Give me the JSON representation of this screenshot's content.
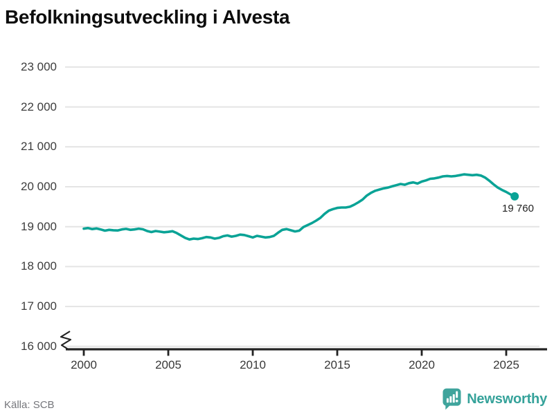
{
  "header": {
    "title": "Befolkningsutveckling i Alvesta"
  },
  "footer": {
    "source": "Källa: SCB",
    "brand": "Newsworthy"
  },
  "colors": {
    "line": "#0aa396",
    "grid": "#e4e4e4",
    "axis": "#222222",
    "title_text": "#0d0d0d",
    "tick_text": "#3d3d3d",
    "source_text": "#75767b",
    "brand_teal": "#3fa49c",
    "brand_text": "#35a29a",
    "end_label_text": "#1f1f1f"
  },
  "chart_data": {
    "type": "line",
    "title": "Befolkningsutveckling i Alvesta",
    "source": "Källa: SCB",
    "series_name": "Befolkning i Alvesta",
    "x_start": 2000.0,
    "x_step_years": 0.25,
    "values": [
      18950,
      18965,
      18940,
      18955,
      18930,
      18900,
      18920,
      18910,
      18905,
      18930,
      18945,
      18920,
      18930,
      18950,
      18935,
      18890,
      18865,
      18890,
      18875,
      18860,
      18870,
      18885,
      18840,
      18780,
      18720,
      18680,
      18700,
      18690,
      18710,
      18740,
      18730,
      18700,
      18720,
      18760,
      18780,
      18750,
      18770,
      18800,
      18790,
      18760,
      18730,
      18770,
      18750,
      18730,
      18740,
      18770,
      18850,
      18920,
      18940,
      18910,
      18880,
      18900,
      18990,
      19040,
      19090,
      19150,
      19220,
      19320,
      19400,
      19440,
      19470,
      19480,
      19480,
      19500,
      19550,
      19610,
      19680,
      19780,
      19850,
      19900,
      19930,
      19960,
      19980,
      20010,
      20040,
      20070,
      20050,
      20090,
      20110,
      20080,
      20130,
      20160,
      20200,
      20210,
      20230,
      20260,
      20270,
      20260,
      20270,
      20290,
      20310,
      20300,
      20290,
      20300,
      20280,
      20230,
      20150,
      20060,
      19980,
      19920,
      19870,
      19810,
      19760
    ],
    "last_value": 19760,
    "end_label": "19 760",
    "ylim": [
      16000,
      23000
    ],
    "y_axis_break": true,
    "yticks": [
      16000,
      17000,
      18000,
      19000,
      20000,
      21000,
      22000,
      23000
    ],
    "xticks": [
      2000,
      2005,
      2010,
      2015,
      2020,
      2025
    ],
    "grid": "horizontal",
    "legend": "none"
  }
}
